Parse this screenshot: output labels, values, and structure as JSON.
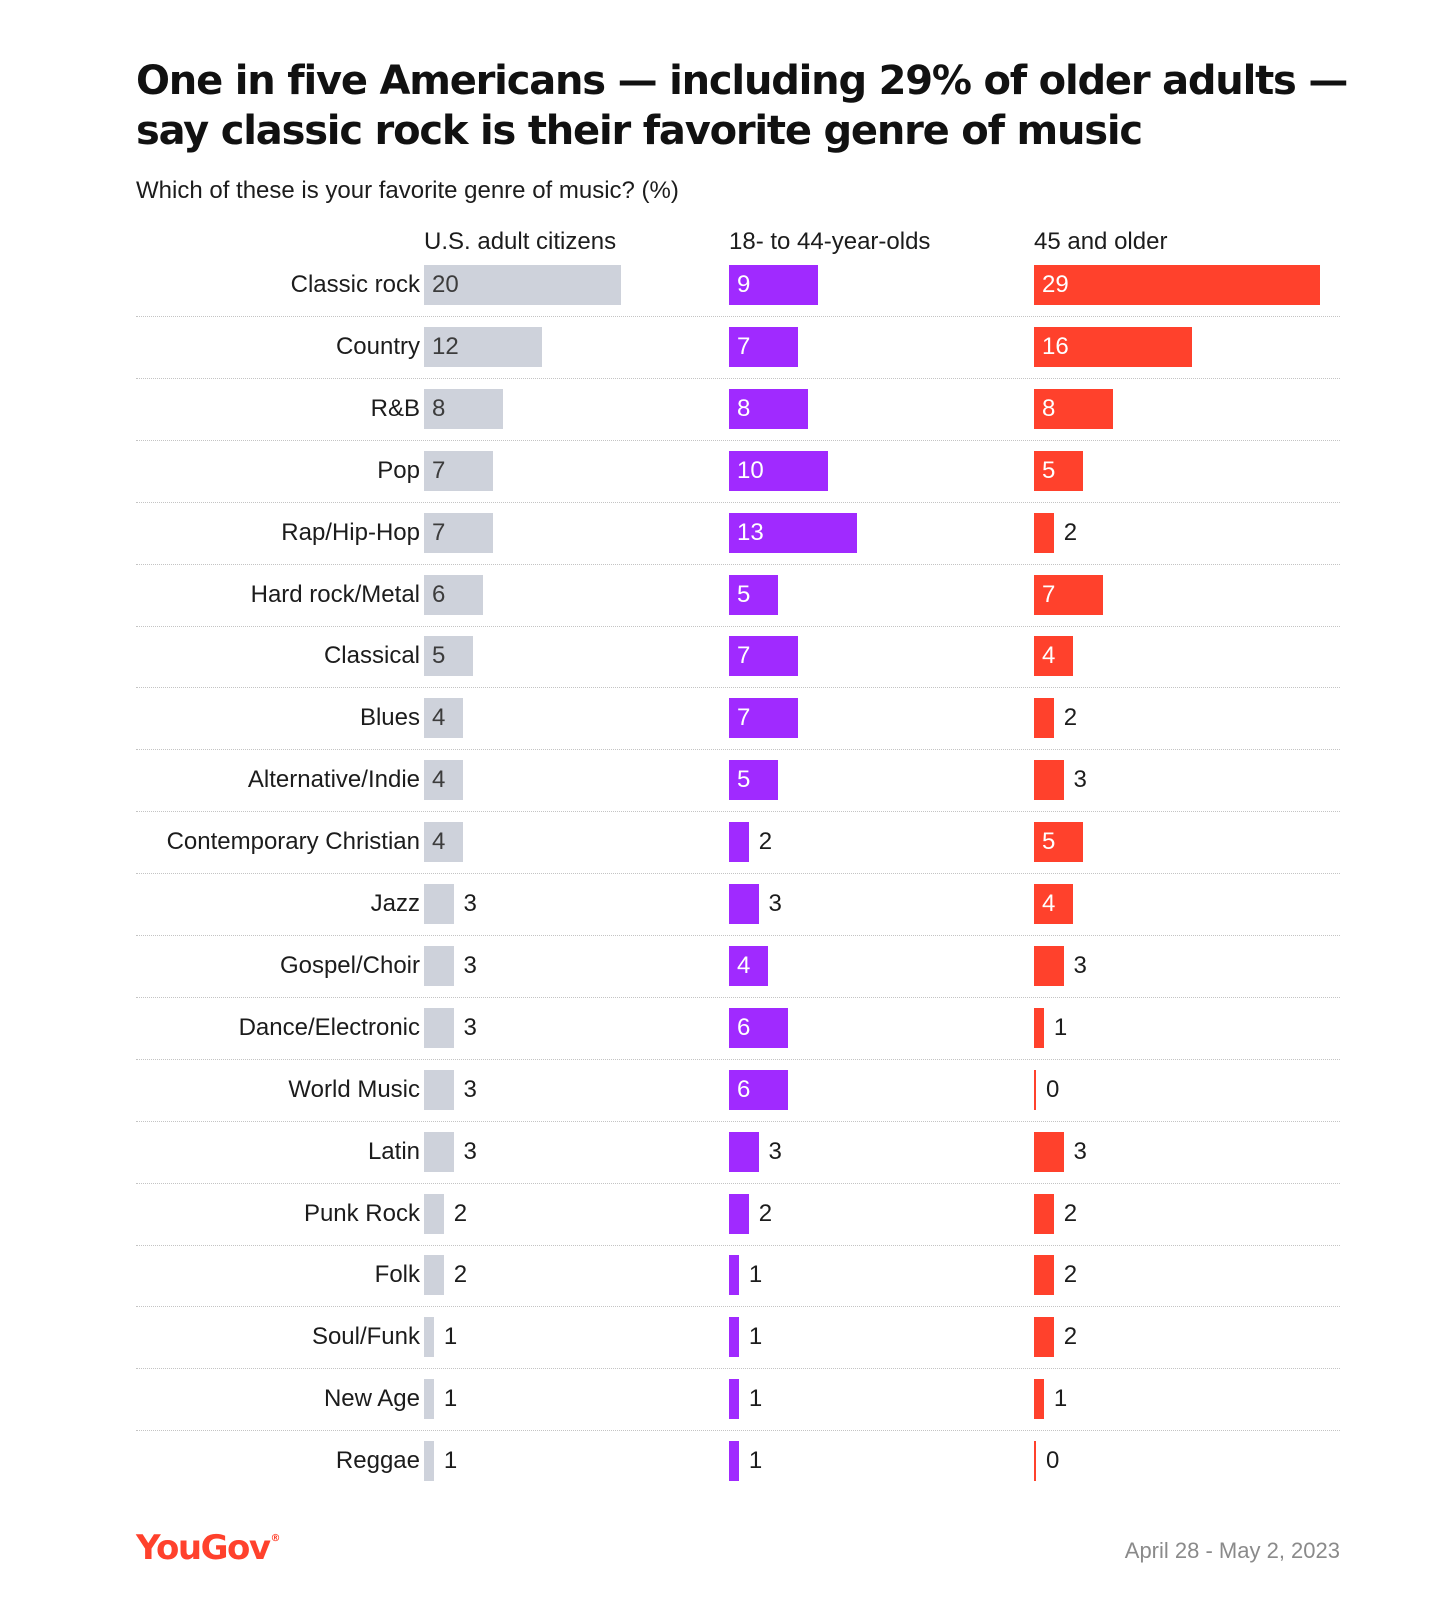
{
  "chart_data": {
    "type": "bar",
    "title": "One in five Americans — including 29% of older adults — say classic rock is their favorite genre of music",
    "subtitle": "Which of these is your favorite genre of music? (%)",
    "categories": [
      "Classic rock",
      "Country",
      "R&B",
      "Pop",
      "Rap/Hip-Hop",
      "Hard rock/Metal",
      "Classical",
      "Blues",
      "Alternative/Indie",
      "Contemporary Christian",
      "Jazz",
      "Gospel/Choir",
      "Dance/Electronic",
      "World Music",
      "Latin",
      "Punk Rock",
      "Folk",
      "Soul/Funk",
      "New Age",
      "Reggae"
    ],
    "series": [
      {
        "name": "U.S. adult citizens",
        "color": "#ced2db",
        "label_color": "#3c3c3c",
        "values": [
          20,
          12,
          8,
          7,
          7,
          6,
          5,
          4,
          4,
          4,
          3,
          3,
          3,
          3,
          3,
          2,
          2,
          1,
          1,
          1
        ]
      },
      {
        "name": "18- to 44-year-olds",
        "color": "#a02aff",
        "label_color": "#ffffff",
        "values": [
          9,
          7,
          8,
          10,
          13,
          5,
          7,
          7,
          5,
          2,
          3,
          4,
          6,
          6,
          3,
          2,
          1,
          1,
          1,
          1
        ]
      },
      {
        "name": "45 and older",
        "color": "#ff412c",
        "label_color": "#ffffff",
        "values": [
          29,
          16,
          8,
          5,
          2,
          7,
          4,
          2,
          3,
          5,
          4,
          3,
          1,
          0,
          3,
          2,
          2,
          2,
          1,
          0
        ]
      }
    ],
    "xlim": [
      0,
      30
    ],
    "grid": false,
    "legend": "none"
  },
  "branding": {
    "logo_text": "YouGov",
    "logo_mark": "®"
  },
  "footer": {
    "date": "April 28 - May 2, 2023"
  }
}
